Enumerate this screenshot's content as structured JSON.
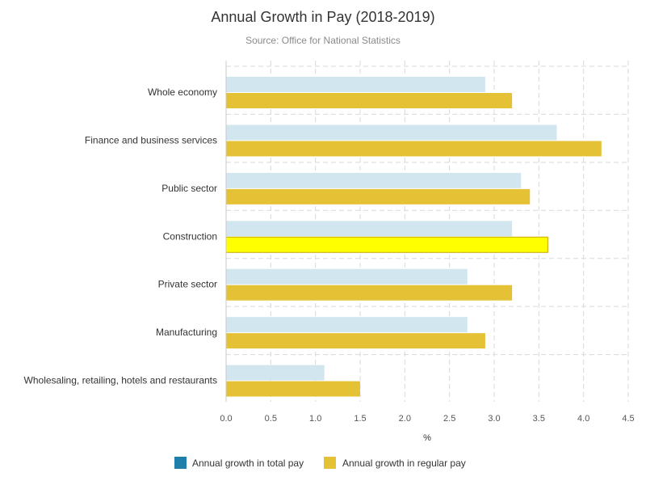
{
  "chart_data": {
    "type": "bar",
    "orientation": "horizontal",
    "title": "Annual Growth in Pay (2018-2019)",
    "subtitle": "Source: Office for National Statistics",
    "xlabel": "%",
    "ylabel": "",
    "xlim": [
      0,
      4.5
    ],
    "ticks": [
      "0.0",
      "0.5",
      "1.0",
      "1.5",
      "2.0",
      "2.5",
      "3.0",
      "3.5",
      "4.0",
      "4.5"
    ],
    "grid": true,
    "legend_position": "bottom",
    "categories": [
      "Whole economy",
      "Finance and business services",
      "Public sector",
      "Construction",
      "Private sector",
      "Manufacturing",
      "Wholesaling, retailing, hotels and restaurants"
    ],
    "series": [
      {
        "name": "Annual growth in total pay",
        "legend_color": "#1f7fa8",
        "bar_color": "#d2e6f0",
        "values": [
          2.9,
          3.7,
          3.3,
          3.2,
          2.7,
          2.7,
          1.1
        ]
      },
      {
        "name": "Annual growth in regular pay",
        "legend_color": "#e5c235",
        "bar_color": "#e5c235",
        "values": [
          3.2,
          4.2,
          3.4,
          3.6,
          3.2,
          2.9,
          1.5
        ]
      }
    ],
    "highlight": {
      "category": "Construction",
      "series": "Annual growth in regular pay",
      "color": "#ffff00"
    }
  }
}
